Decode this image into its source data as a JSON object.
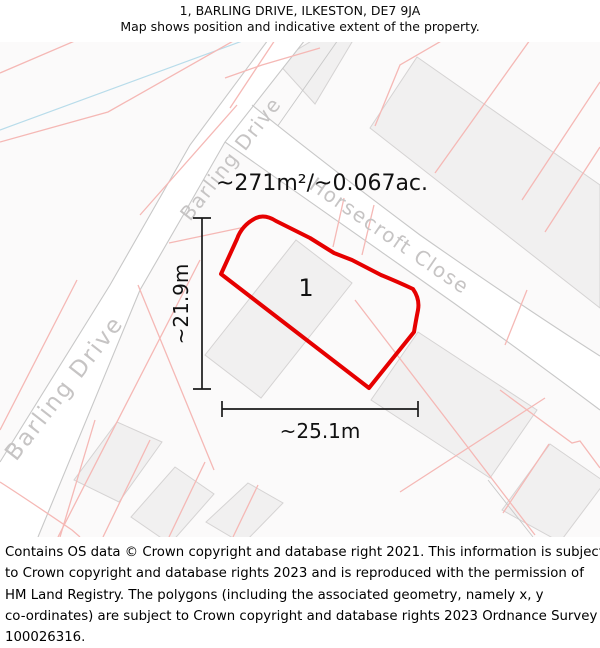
{
  "header": {
    "title": "1, BARLING DRIVE, ILKESTON, DE7 9JA",
    "subtitle": "Map shows position and indicative extent of the property."
  },
  "map": {
    "area_label": "~271m²/~0.067ac.",
    "plot_number": "1",
    "width_label": "~25.1m",
    "height_label": "~21.9m",
    "street_labels": {
      "barling_upper": "Barling Drive",
      "barling_lower": "Barling Drive",
      "horsecroft": "Horsecroft Close"
    },
    "colors": {
      "plot_outline": "#e60000",
      "parcel_line": "#f5b8b5",
      "road_edge": "#c8c8c8",
      "building_fill": "#f1f0f0",
      "building_stroke": "#d5d3d3",
      "water_line": "#b8dcea",
      "street_label": "#c6c4c4"
    }
  },
  "footer": {
    "lines": [
      "Contains OS data © Crown copyright and database right 2021. This information is subject",
      "to Crown copyright and database rights 2023 and is reproduced with the permission of",
      "HM Land Registry. The polygons (including the associated geometry, namely x, y",
      "co-ordinates) are subject to Crown copyright and database rights 2023 Ordnance Survey",
      "100026316."
    ]
  }
}
